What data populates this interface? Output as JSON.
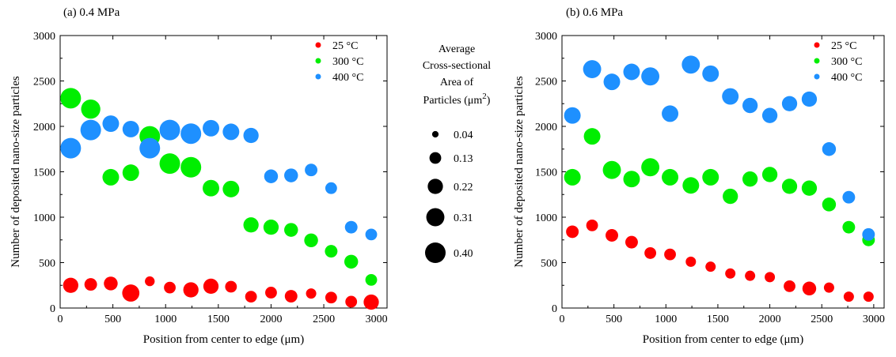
{
  "chart_data": [
    {
      "type": "scatter",
      "title": "(a) 0.4 MPa",
      "xlabel": "Position from center to edge (μm)",
      "ylabel": "Number of deposited nano-size particles",
      "xlim": [
        0,
        3100
      ],
      "ylim": [
        0,
        3000
      ],
      "xticks": [
        0,
        500,
        1000,
        1500,
        2000,
        2500,
        3000
      ],
      "yticks": [
        0,
        500,
        1000,
        1500,
        2000,
        2500,
        3000
      ],
      "grid": false,
      "legend_position": "top-right",
      "size_encoding": "Average cross-sectional area of particles (μm²)",
      "series": [
        {
          "name": "25 °C",
          "color": "#ff0000",
          "points": [
            {
              "x": 100,
              "y": 250,
              "s": 0.22
            },
            {
              "x": 290,
              "y": 260,
              "s": 0.15
            },
            {
              "x": 480,
              "y": 270,
              "s": 0.18
            },
            {
              "x": 670,
              "y": 165,
              "s": 0.28
            },
            {
              "x": 850,
              "y": 295,
              "s": 0.09
            },
            {
              "x": 1040,
              "y": 225,
              "s": 0.13
            },
            {
              "x": 1240,
              "y": 200,
              "s": 0.22
            },
            {
              "x": 1430,
              "y": 240,
              "s": 0.22
            },
            {
              "x": 1620,
              "y": 235,
              "s": 0.13
            },
            {
              "x": 1810,
              "y": 125,
              "s": 0.13
            },
            {
              "x": 2000,
              "y": 170,
              "s": 0.13
            },
            {
              "x": 2190,
              "y": 130,
              "s": 0.15
            },
            {
              "x": 2380,
              "y": 160,
              "s": 0.1
            },
            {
              "x": 2570,
              "y": 115,
              "s": 0.13
            },
            {
              "x": 2760,
              "y": 70,
              "s": 0.13
            },
            {
              "x": 2950,
              "y": 65,
              "s": 0.22
            }
          ]
        },
        {
          "name": "300 °C",
          "color": "#00ee00",
          "points": [
            {
              "x": 100,
              "y": 2310,
              "s": 0.4
            },
            {
              "x": 290,
              "y": 2190,
              "s": 0.35
            },
            {
              "x": 480,
              "y": 1440,
              "s": 0.26
            },
            {
              "x": 670,
              "y": 1490,
              "s": 0.26
            },
            {
              "x": 850,
              "y": 1890,
              "s": 0.4
            },
            {
              "x": 1040,
              "y": 1590,
              "s": 0.4
            },
            {
              "x": 1240,
              "y": 1550,
              "s": 0.4
            },
            {
              "x": 1430,
              "y": 1320,
              "s": 0.26
            },
            {
              "x": 1620,
              "y": 1310,
              "s": 0.26
            },
            {
              "x": 1810,
              "y": 915,
              "s": 0.22
            },
            {
              "x": 2000,
              "y": 890,
              "s": 0.22
            },
            {
              "x": 2190,
              "y": 860,
              "s": 0.18
            },
            {
              "x": 2380,
              "y": 745,
              "s": 0.18
            },
            {
              "x": 2570,
              "y": 625,
              "s": 0.15
            },
            {
              "x": 2760,
              "y": 510,
              "s": 0.18
            },
            {
              "x": 2950,
              "y": 310,
              "s": 0.13
            }
          ]
        },
        {
          "name": "400 °C",
          "color": "#1e90ff",
          "points": [
            {
              "x": 100,
              "y": 1760,
              "s": 0.4
            },
            {
              "x": 290,
              "y": 1960,
              "s": 0.4
            },
            {
              "x": 480,
              "y": 2030,
              "s": 0.26
            },
            {
              "x": 670,
              "y": 1970,
              "s": 0.26
            },
            {
              "x": 850,
              "y": 1760,
              "s": 0.4
            },
            {
              "x": 1040,
              "y": 1960,
              "s": 0.4
            },
            {
              "x": 1240,
              "y": 1920,
              "s": 0.4
            },
            {
              "x": 1430,
              "y": 1980,
              "s": 0.26
            },
            {
              "x": 1620,
              "y": 1940,
              "s": 0.26
            },
            {
              "x": 1810,
              "y": 1900,
              "s": 0.22
            },
            {
              "x": 2000,
              "y": 1450,
              "s": 0.18
            },
            {
              "x": 2190,
              "y": 1460,
              "s": 0.18
            },
            {
              "x": 2380,
              "y": 1520,
              "s": 0.15
            },
            {
              "x": 2570,
              "y": 1320,
              "s": 0.13
            },
            {
              "x": 2760,
              "y": 890,
              "s": 0.15
            },
            {
              "x": 2950,
              "y": 810,
              "s": 0.13
            }
          ]
        }
      ]
    },
    {
      "type": "scatter",
      "title": "(b) 0.6 MPa",
      "xlabel": "Position from center to edge (μm)",
      "ylabel": "Number of deposited nano-size particles",
      "xlim": [
        0,
        3100
      ],
      "ylim": [
        0,
        3000
      ],
      "xticks": [
        0,
        500,
        1000,
        1500,
        2000,
        2500,
        3000
      ],
      "yticks": [
        0,
        500,
        1000,
        1500,
        2000,
        2500,
        3000
      ],
      "grid": false,
      "legend_position": "top-right",
      "size_encoding": "Average cross-sectional area of particles (μm²)",
      "series": [
        {
          "name": "25 °C",
          "color": "#ff0000",
          "points": [
            {
              "x": 100,
              "y": 840,
              "s": 0.15
            },
            {
              "x": 290,
              "y": 910,
              "s": 0.13
            },
            {
              "x": 480,
              "y": 800,
              "s": 0.15
            },
            {
              "x": 670,
              "y": 725,
              "s": 0.15
            },
            {
              "x": 850,
              "y": 605,
              "s": 0.13
            },
            {
              "x": 1040,
              "y": 590,
              "s": 0.13
            },
            {
              "x": 1240,
              "y": 510,
              "s": 0.1
            },
            {
              "x": 1430,
              "y": 455,
              "s": 0.1
            },
            {
              "x": 1620,
              "y": 380,
              "s": 0.1
            },
            {
              "x": 1810,
              "y": 355,
              "s": 0.1
            },
            {
              "x": 2000,
              "y": 340,
              "s": 0.1
            },
            {
              "x": 2190,
              "y": 240,
              "s": 0.13
            },
            {
              "x": 2380,
              "y": 215,
              "s": 0.18
            },
            {
              "x": 2570,
              "y": 225,
              "s": 0.1
            },
            {
              "x": 2760,
              "y": 125,
              "s": 0.1
            },
            {
              "x": 2950,
              "y": 125,
              "s": 0.1
            }
          ]
        },
        {
          "name": "300 °C",
          "color": "#00ee00",
          "points": [
            {
              "x": 100,
              "y": 1440,
              "s": 0.26
            },
            {
              "x": 290,
              "y": 1890,
              "s": 0.26
            },
            {
              "x": 480,
              "y": 1520,
              "s": 0.31
            },
            {
              "x": 670,
              "y": 1420,
              "s": 0.26
            },
            {
              "x": 850,
              "y": 1550,
              "s": 0.31
            },
            {
              "x": 1040,
              "y": 1440,
              "s": 0.26
            },
            {
              "x": 1240,
              "y": 1350,
              "s": 0.26
            },
            {
              "x": 1430,
              "y": 1440,
              "s": 0.26
            },
            {
              "x": 1620,
              "y": 1230,
              "s": 0.22
            },
            {
              "x": 1810,
              "y": 1420,
              "s": 0.22
            },
            {
              "x": 2000,
              "y": 1470,
              "s": 0.22
            },
            {
              "x": 2190,
              "y": 1340,
              "s": 0.22
            },
            {
              "x": 2380,
              "y": 1320,
              "s": 0.22
            },
            {
              "x": 2570,
              "y": 1140,
              "s": 0.18
            },
            {
              "x": 2760,
              "y": 890,
              "s": 0.15
            },
            {
              "x": 2950,
              "y": 750,
              "s": 0.15
            }
          ]
        },
        {
          "name": "400 °C",
          "color": "#1e90ff",
          "points": [
            {
              "x": 100,
              "y": 2120,
              "s": 0.26
            },
            {
              "x": 290,
              "y": 2630,
              "s": 0.31
            },
            {
              "x": 480,
              "y": 2490,
              "s": 0.26
            },
            {
              "x": 670,
              "y": 2600,
              "s": 0.26
            },
            {
              "x": 850,
              "y": 2550,
              "s": 0.31
            },
            {
              "x": 1040,
              "y": 2140,
              "s": 0.26
            },
            {
              "x": 1240,
              "y": 2680,
              "s": 0.31
            },
            {
              "x": 1430,
              "y": 2580,
              "s": 0.26
            },
            {
              "x": 1620,
              "y": 2330,
              "s": 0.26
            },
            {
              "x": 1810,
              "y": 2230,
              "s": 0.22
            },
            {
              "x": 2000,
              "y": 2120,
              "s": 0.22
            },
            {
              "x": 2190,
              "y": 2250,
              "s": 0.22
            },
            {
              "x": 2380,
              "y": 2300,
              "s": 0.22
            },
            {
              "x": 2570,
              "y": 1750,
              "s": 0.18
            },
            {
              "x": 2760,
              "y": 1220,
              "s": 0.15
            },
            {
              "x": 2950,
              "y": 810,
              "s": 0.15
            }
          ]
        }
      ]
    }
  ],
  "size_legend": {
    "title_lines": [
      "Average",
      "Cross-sectional",
      "Area of"
    ],
    "title_last_prefix": "Particles (μm",
    "title_last_sup": "2",
    "title_last_suffix": ")",
    "entries": [
      {
        "label": "0.04",
        "s": 0.04
      },
      {
        "label": "0.13",
        "s": 0.13
      },
      {
        "label": "0.22",
        "s": 0.22
      },
      {
        "label": "0.31",
        "s": 0.31
      },
      {
        "label": "0.40",
        "s": 0.4
      }
    ]
  }
}
